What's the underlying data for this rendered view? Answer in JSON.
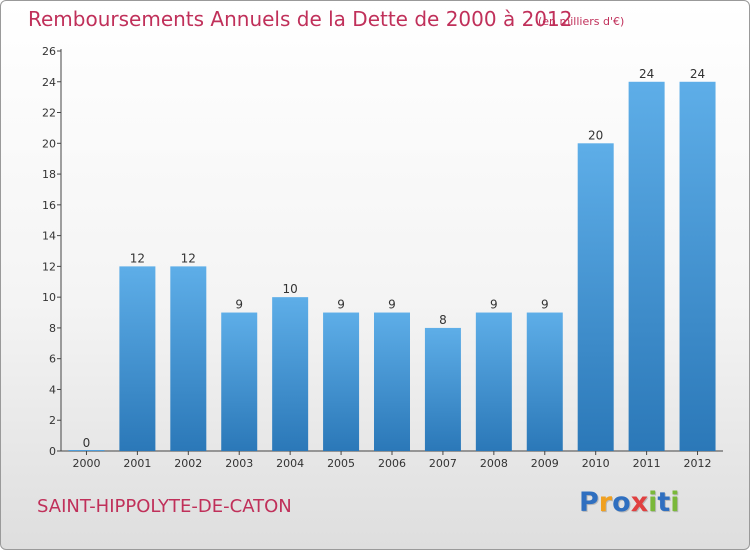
{
  "header": {
    "title": "Remboursements Annuels de la Dette de 2000 à 2012",
    "subtitle": "(en milliers d'€)"
  },
  "footer": {
    "place": "SAINT-HIPPOLYTE-DE-CATON",
    "logo": "Proxiti",
    "logo_letters": [
      {
        "char": "P",
        "color": "#2f6fc0"
      },
      {
        "char": "r",
        "color": "#f0a020"
      },
      {
        "char": "o",
        "color": "#2f6fc0"
      },
      {
        "char": "x",
        "color": "#e04040"
      },
      {
        "char": "i",
        "color": "#7ab83a"
      },
      {
        "char": "t",
        "color": "#2f6fc0"
      },
      {
        "char": "i",
        "color": "#7ab83a"
      }
    ]
  },
  "chart_data": {
    "type": "bar",
    "categories": [
      "2000",
      "2001",
      "2002",
      "2003",
      "2004",
      "2005",
      "2006",
      "2007",
      "2008",
      "2009",
      "2010",
      "2011",
      "2012"
    ],
    "values": [
      0,
      12,
      12,
      9,
      10,
      9,
      9,
      8,
      9,
      9,
      20,
      24,
      24
    ],
    "ylim": [
      0,
      26
    ],
    "yticks": [
      0,
      2,
      4,
      6,
      8,
      10,
      12,
      14,
      16,
      18,
      20,
      22,
      24,
      26
    ],
    "grid": false,
    "bar_color": "#4f9edb"
  }
}
